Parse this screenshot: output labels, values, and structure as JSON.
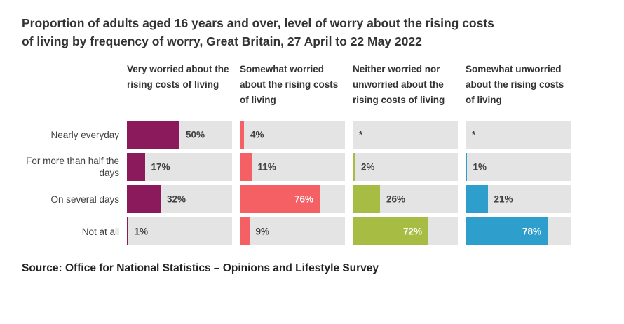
{
  "title": "Proportion of adults aged 16 years and over, level of worry about the rising costs of living by frequency of worry, Great Britain, 27 April to 22 May 2022",
  "source": "Source: Office for National Statistics – Opinions and Lifestyle Survey",
  "chart_data": {
    "type": "bar",
    "orientation": "horizontal",
    "unit": "%",
    "xlim": [
      0,
      100
    ],
    "grid": false,
    "legend_position": "column-headers",
    "track_color": "#e4e4e4",
    "suppressed_marker": "*",
    "categories": [
      "Nearly everyday",
      "For more than half the days",
      "On several days",
      "Not at all"
    ],
    "series": [
      {
        "name": "Very worried about the rising costs of living",
        "color": "#8a1a5b",
        "values": [
          50,
          17,
          32,
          1
        ],
        "labels": [
          "50%",
          "17%",
          "32%",
          "1%"
        ]
      },
      {
        "name": "Somewhat worried about the rising costs of living",
        "color": "#f56065",
        "values": [
          4,
          11,
          76,
          9
        ],
        "labels": [
          "4%",
          "11%",
          "76%",
          "9%"
        ]
      },
      {
        "name": "Neither worried nor unworried about the rising costs of living",
        "color": "#a7bc43",
        "values": [
          null,
          2,
          26,
          72
        ],
        "labels": [
          "*",
          "2%",
          "26%",
          "72%"
        ]
      },
      {
        "name": "Somewhat unworried about the rising costs of living",
        "color": "#2e9ecc",
        "values": [
          null,
          1,
          21,
          78
        ],
        "labels": [
          "*",
          "1%",
          "21%",
          "78%"
        ]
      }
    ]
  }
}
